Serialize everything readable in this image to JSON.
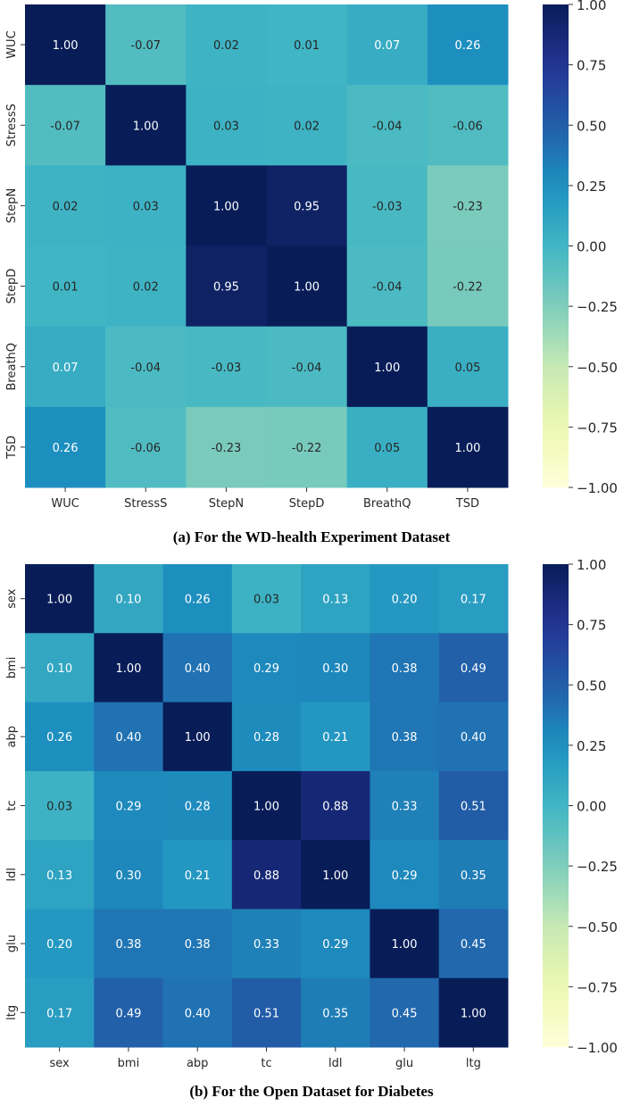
{
  "chart_data": [
    {
      "type": "heatmap",
      "caption": "(a) For the WD-health Experiment Dataset",
      "labels": [
        "WUC",
        "StressS",
        "StepN",
        "StepD",
        "BreathQ",
        "TSD"
      ],
      "matrix": [
        [
          1.0,
          -0.07,
          0.02,
          0.01,
          0.07,
          0.26
        ],
        [
          -0.07,
          1.0,
          0.03,
          0.02,
          -0.04,
          -0.06
        ],
        [
          0.02,
          0.03,
          1.0,
          0.95,
          -0.03,
          -0.23
        ],
        [
          0.01,
          0.02,
          0.95,
          1.0,
          -0.04,
          -0.22
        ],
        [
          0.07,
          -0.04,
          -0.03,
          -0.04,
          1.0,
          0.05
        ],
        [
          0.26,
          -0.06,
          -0.23,
          -0.22,
          0.05,
          1.0
        ]
      ],
      "vmin": -1.0,
      "vmax": 1.0,
      "colormap": "YlGnBu",
      "colorbar_ticks": [
        "1.00",
        "0.75",
        "0.50",
        "0.25",
        "0.00",
        "−0.25",
        "−0.50",
        "−0.75",
        "−1.00"
      ]
    },
    {
      "type": "heatmap",
      "caption": "(b) For the Open Dataset for Diabetes",
      "labels": [
        "sex",
        "bmi",
        "abp",
        "tc",
        "ldl",
        "glu",
        "ltg"
      ],
      "matrix": [
        [
          1.0,
          0.1,
          0.26,
          0.03,
          0.13,
          0.2,
          0.17
        ],
        [
          0.1,
          1.0,
          0.4,
          0.29,
          0.3,
          0.38,
          0.49
        ],
        [
          0.26,
          0.4,
          1.0,
          0.28,
          0.21,
          0.38,
          0.4
        ],
        [
          0.03,
          0.29,
          0.28,
          1.0,
          0.88,
          0.33,
          0.51
        ],
        [
          0.13,
          0.3,
          0.21,
          0.88,
          1.0,
          0.29,
          0.35
        ],
        [
          0.2,
          0.38,
          0.38,
          0.33,
          0.29,
          1.0,
          0.45
        ],
        [
          0.17,
          0.49,
          0.4,
          0.51,
          0.35,
          0.45,
          1.0
        ]
      ],
      "vmin": -1.0,
      "vmax": 1.0,
      "colormap": "YlGnBu",
      "colorbar_ticks": [
        "1.00",
        "0.75",
        "0.50",
        "0.25",
        "0.00",
        "−0.25",
        "−0.50",
        "−0.75",
        "−1.00"
      ]
    }
  ]
}
